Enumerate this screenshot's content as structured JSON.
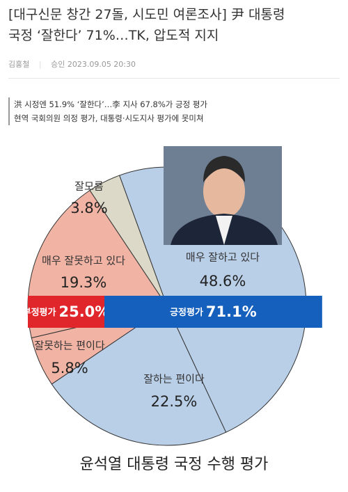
{
  "headline": [
    "[대구신문 창간 27돌, 시도민 여론조사] 尹 대통령",
    "국정 ‘잘한다’ 71%…TK, 압도적 지지"
  ],
  "byline": {
    "author": "김홍철",
    "approved": "승인 2023.09.05 20:30"
  },
  "subheadings": [
    "洪 시정엔 51.9% ‘잘한다’…李 지사 67.8%가 긍정 평가",
    "현역 국회의원 의정 평가, 대통령·시도지사 평가에 못미쳐"
  ],
  "chart_data": {
    "type": "pie",
    "title": "윤석열 대통령 국정 수행 평가",
    "categories": [
      "매우 잘하고 있다",
      "잘하는 편이다",
      "잘못하는 편이다",
      "매우 잘못하고 있다",
      "잘모름"
    ],
    "values": [
      48.6,
      22.5,
      5.8,
      19.3,
      3.8
    ],
    "value_labels": [
      "48.6%",
      "22.5%",
      "5.8%",
      "19.3%",
      "3.8%"
    ],
    "colors": [
      "#b9cfe8",
      "#b9cfe8",
      "#f1b3a4",
      "#f1b3a4",
      "#dcd9c8"
    ],
    "summary": [
      {
        "name": "부정평가",
        "value": 25.0,
        "value_label": "25.0%",
        "color": "#e0262b"
      },
      {
        "name": "긍정평가",
        "value": 71.1,
        "value_label": "71.1%",
        "color": "#1560bd"
      }
    ]
  }
}
